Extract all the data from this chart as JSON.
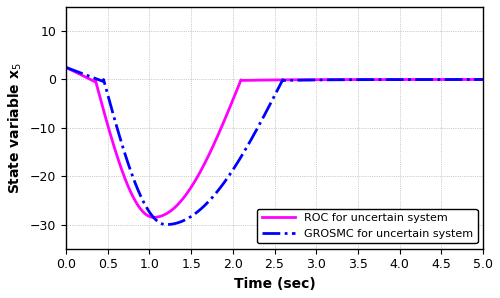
{
  "title": "",
  "xlabel": "Time (sec)",
  "ylabel": "State variable x_5",
  "xlim": [
    0,
    5
  ],
  "ylim": [
    -35,
    15
  ],
  "yticks": [
    -30,
    -20,
    -10,
    0,
    10
  ],
  "xticks": [
    0,
    0.5,
    1,
    1.5,
    2,
    2.5,
    3,
    3.5,
    4,
    4.5,
    5
  ],
  "legend_labels": [
    "GROSMC for uncertain system",
    "ROC for uncertain system"
  ],
  "grosmc_color": "#0000FF",
  "roc_color": "#FF00FF",
  "background_color": "#FFFFFF",
  "grid_color": "#808080"
}
